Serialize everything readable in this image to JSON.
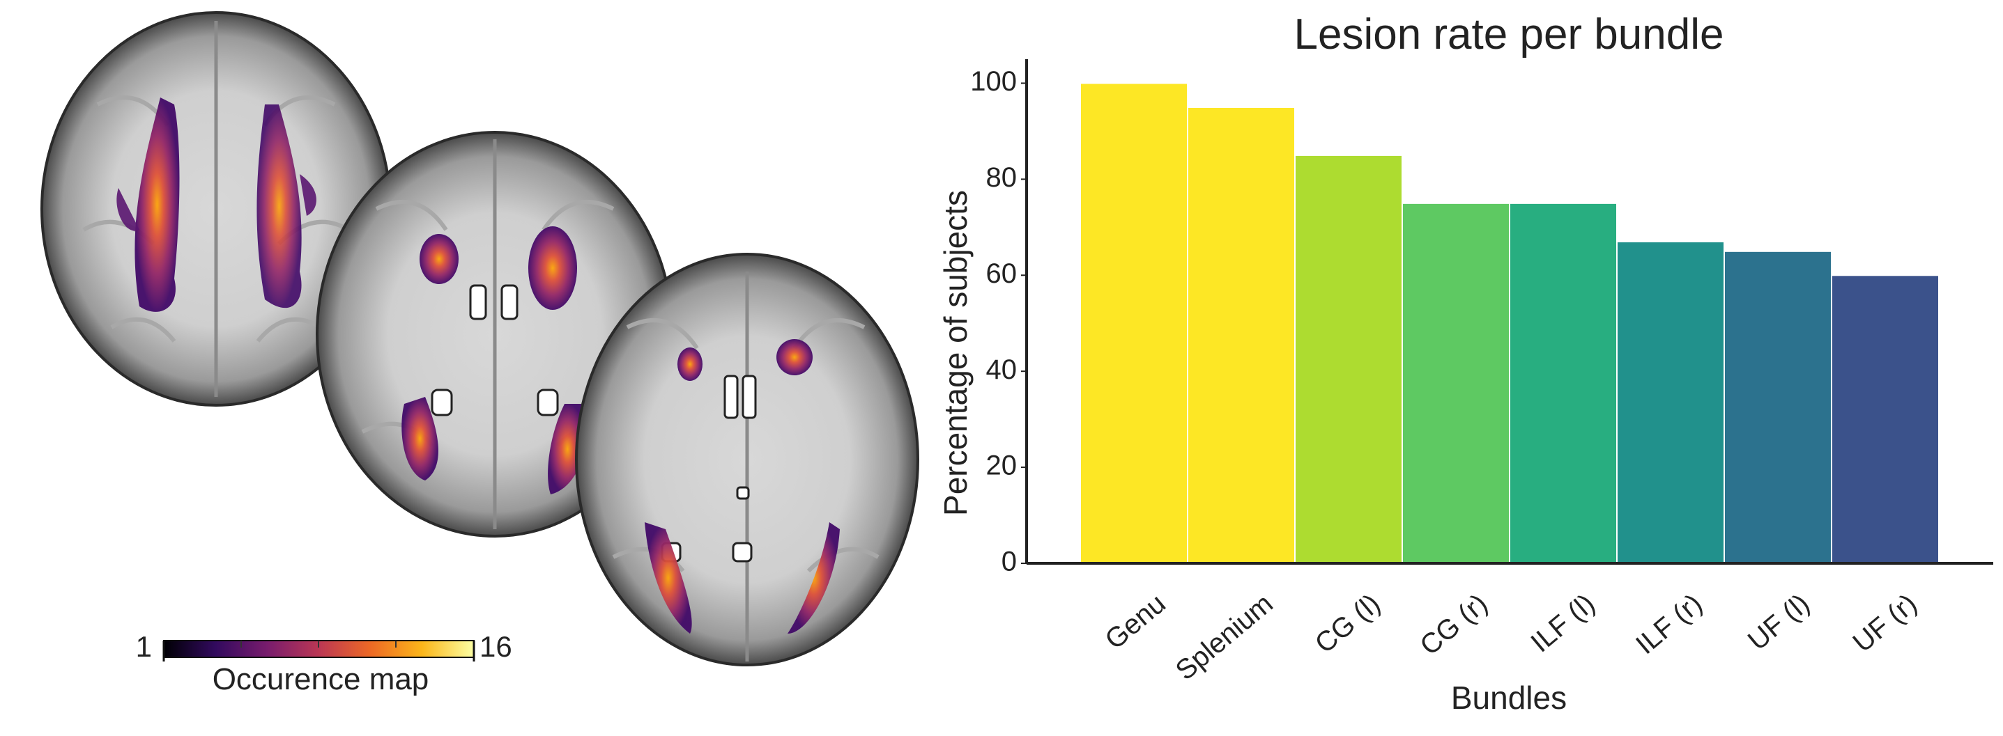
{
  "brain_panel": {
    "colorbar": {
      "min_label": "1",
      "max_label": "16",
      "label": "Occurence map",
      "colormap": "inferno",
      "stops": [
        "#000004",
        "#320a5e",
        "#781c6d",
        "#bb3754",
        "#ed6925",
        "#fbb61a",
        "#fcffa4"
      ]
    }
  },
  "chart_data": {
    "type": "bar",
    "title": "Lesion rate per bundle",
    "xlabel": "Bundles",
    "ylabel": "Percentage of subjects",
    "categories": [
      "Genu",
      "Splenium",
      "CG (l)",
      "CG (r)",
      "ILF (l)",
      "ILF (r)",
      "UF (l)",
      "UF (r)"
    ],
    "values": [
      100,
      95,
      85,
      75,
      75,
      67,
      65,
      60
    ],
    "colors": [
      "#fde725",
      "#fde725",
      "#addc30",
      "#5ec962",
      "#28ae80",
      "#21918c",
      "#2c728e",
      "#3b528b"
    ],
    "ylim": [
      0,
      105
    ],
    "yticks": [
      0,
      20,
      40,
      60,
      80,
      100
    ],
    "grid": false,
    "legend": "none"
  }
}
